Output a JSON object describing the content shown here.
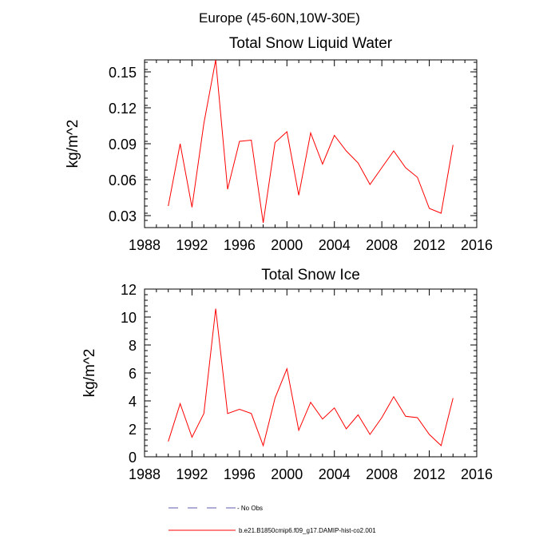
{
  "figure": {
    "title": "Europe (45-60N,10W-30E)"
  },
  "legend": {
    "entries": [
      {
        "label": "No Obs",
        "style": "dashed",
        "color": "#5a5aa8"
      },
      {
        "label": "b.e21.B1850cmip6.f09_g17.DAMIP-hist-co2.001",
        "style": "solid",
        "color": "#ff0000"
      }
    ]
  },
  "chart_data": [
    {
      "type": "line",
      "title": "Total Snow Liquid Water",
      "xlabel": "",
      "ylabel": "kg/m^2",
      "xlim": [
        1988,
        2016
      ],
      "ylim": [
        0.02,
        0.16
      ],
      "xticks": [
        1988,
        1992,
        1996,
        2000,
        2004,
        2008,
        2012,
        2016
      ],
      "yticks": [
        0.03,
        0.06,
        0.09,
        0.12,
        0.15
      ],
      "yticklabels": [
        "0.03",
        "0.06",
        "0.09",
        "0.12",
        "0.15"
      ],
      "x": [
        1990,
        1991,
        1992,
        1993,
        1994,
        1995,
        1996,
        1997,
        1998,
        1999,
        2000,
        2001,
        2002,
        2003,
        2004,
        2005,
        2006,
        2007,
        2008,
        2009,
        2010,
        2011,
        2012,
        2013,
        2014
      ],
      "series": [
        {
          "color": "#ff0000",
          "values": [
            0.038,
            0.09,
            0.037,
            0.107,
            0.16,
            0.052,
            0.092,
            0.093,
            0.024,
            0.091,
            0.1,
            0.047,
            0.099,
            0.073,
            0.097,
            0.084,
            0.074,
            0.056,
            0.07,
            0.084,
            0.07,
            0.062,
            0.036,
            0.032,
            0.089
          ]
        }
      ]
    },
    {
      "type": "line",
      "title": "Total Snow Ice",
      "xlabel": "",
      "ylabel": "kg/m^2",
      "xlim": [
        1988,
        2016
      ],
      "ylim": [
        0,
        12
      ],
      "xticks": [
        1988,
        1992,
        1996,
        2000,
        2004,
        2008,
        2012,
        2016
      ],
      "yticks": [
        0,
        2,
        4,
        6,
        8,
        10,
        12
      ],
      "yticklabels": [
        "0",
        "2",
        "4",
        "6",
        "8",
        "10",
        "12"
      ],
      "x": [
        1990,
        1991,
        1992,
        1993,
        1994,
        1995,
        1996,
        1997,
        1998,
        1999,
        2000,
        2001,
        2002,
        2003,
        2004,
        2005,
        2006,
        2007,
        2008,
        2009,
        2010,
        2011,
        2012,
        2013,
        2014
      ],
      "series": [
        {
          "color": "#ff0000",
          "values": [
            1.1,
            3.8,
            1.4,
            3.1,
            10.6,
            3.1,
            3.4,
            3.1,
            0.8,
            4.2,
            6.3,
            1.9,
            3.9,
            2.7,
            3.5,
            2.0,
            3.0,
            1.6,
            2.8,
            4.3,
            2.9,
            2.8,
            1.6,
            0.8,
            4.2
          ]
        }
      ]
    }
  ]
}
